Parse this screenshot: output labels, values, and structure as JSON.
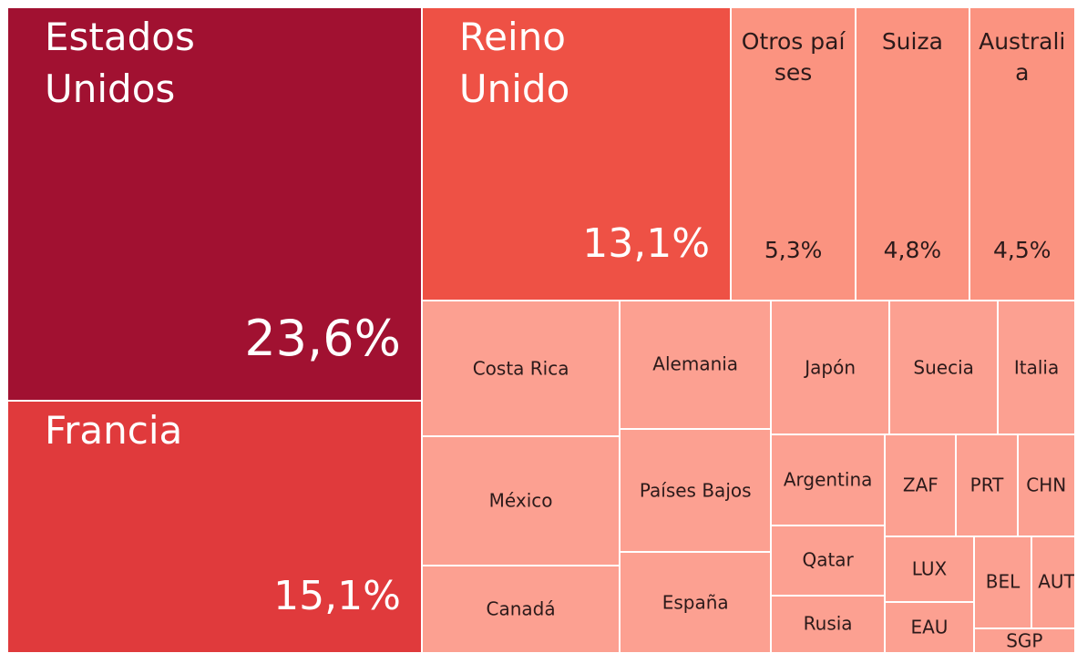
{
  "chart_data": {
    "type": "treemap",
    "categories": [
      "Estados Unidos",
      "Francia",
      "Reino Unido",
      "Otros países",
      "Suiza",
      "Australia",
      "Costa Rica",
      "México",
      "Canadá",
      "Alemania",
      "Países Bajos",
      "España",
      "Japón",
      "Suecia",
      "Italia",
      "Argentina",
      "Qatar",
      "Rusia",
      "ZAF",
      "PRT",
      "CHN",
      "LUX",
      "EAU",
      "BEL",
      "AUT",
      "SGP"
    ],
    "values": [
      23.6,
      15.1,
      13.1,
      5.3,
      4.8,
      4.5,
      3.9,
      3.7,
      2.5,
      2.8,
      2.7,
      2.2,
      2.3,
      2.1,
      1.5,
      1.5,
      1.15,
      0.95,
      1.05,
      0.9,
      0.85,
      0.85,
      0.65,
      0.77,
      0.58,
      0.36
    ],
    "value_labels": [
      "23,6%",
      "15,1%",
      "13,1%",
      "5,3%",
      "4,8%",
      "4,5%",
      null,
      null,
      null,
      null,
      null,
      null,
      null,
      null,
      null,
      null,
      null,
      null,
      null,
      null,
      null,
      null,
      null,
      null,
      null,
      null
    ],
    "colors": [
      "#a11131",
      "#e03a3c",
      "#ee5145",
      "#fb9380",
      "#fb9380",
      "#fb9380",
      "#fca091",
      "#fca091",
      "#fca091",
      "#fca091",
      "#fca091",
      "#fca091",
      "#fca091",
      "#fca091",
      "#fca091",
      "#fca091",
      "#fca091",
      "#fca091",
      "#fca091",
      "#fca091",
      "#fca091",
      "#fca091",
      "#fca091",
      "#fca091",
      "#fca091",
      "#fca091"
    ]
  }
}
